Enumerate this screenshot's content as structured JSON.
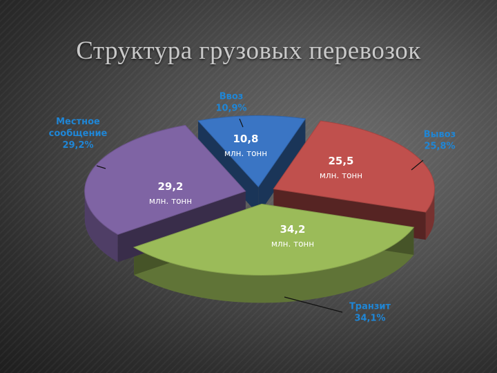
{
  "slide": {
    "title": "Структура грузовых перевозок"
  },
  "colors": {
    "Ввоз": "#3a75c4",
    "Вывоз": "#c0504d",
    "Транзит": "#9bbb59",
    "Местное сообщение": "#7f64a4",
    "callout_text": "#1f86d6",
    "inner_label": "#ffffff"
  },
  "chart_data": {
    "type": "pie",
    "style": "3d-exploded",
    "slices": [
      {
        "key": "vvoz",
        "name": "Ввоз",
        "legend_lines": [
          "Ввоз",
          "10,9%"
        ],
        "value": 10.8,
        "percent_label": "10,9%",
        "value_label": "10,8",
        "unit_label": "млн. тонн"
      },
      {
        "key": "vyvoz",
        "name": "Вывоз",
        "legend_lines": [
          "Вывоз",
          "25,8%"
        ],
        "value": 25.5,
        "percent_label": "25,8%",
        "value_label": "25,5",
        "unit_label": "млн. тонн"
      },
      {
        "key": "tranzit",
        "name": "Транзит",
        "legend_lines": [
          "Транзит",
          "34,1%"
        ],
        "value": 34.2,
        "percent_label": "34,1%",
        "value_label": "34,2",
        "unit_label": "млн. тонн"
      },
      {
        "key": "mestnoe",
        "name": "Местное сообщение",
        "legend_lines": [
          "Местное",
          "сообщение",
          "29,2%"
        ],
        "value": 29.2,
        "percent_label": "29,2%",
        "value_label": "29,2",
        "unit_label": "млн. тонн"
      }
    ]
  }
}
